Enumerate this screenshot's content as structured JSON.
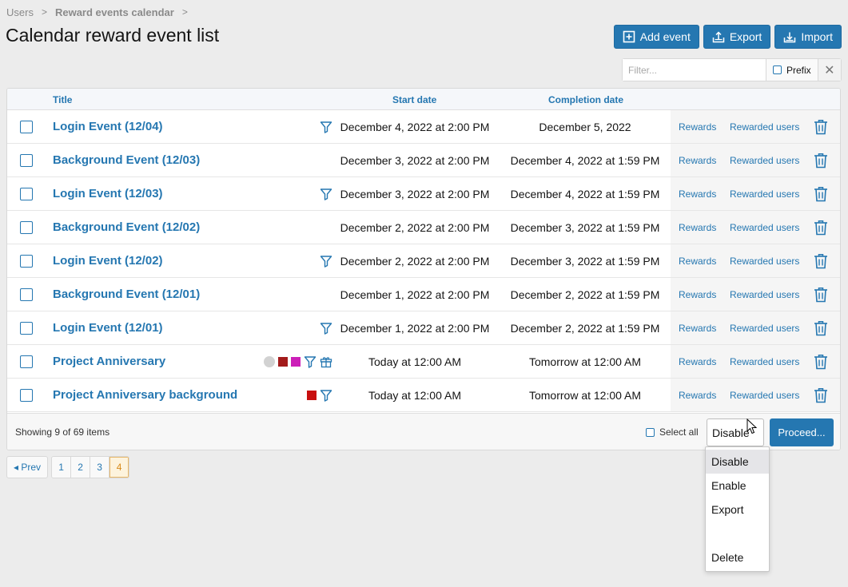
{
  "breadcrumb": {
    "root": "Users",
    "current": "Reward events calendar"
  },
  "page_title": "Calendar reward event list",
  "toolbar": {
    "add_label": "Add event",
    "export_label": "Export",
    "import_label": "Import"
  },
  "filter": {
    "placeholder": "Filter...",
    "prefix_label": "Prefix"
  },
  "columns": {
    "title": "Title",
    "start": "Start date",
    "end": "Completion date"
  },
  "rows": [
    {
      "title": "Login Event (12/04)",
      "start": "December 4, 2022 at 2:00 PM",
      "end": "December 5, 2022",
      "rewards": "Rewards",
      "rewarded": "Rewarded users"
    },
    {
      "title": "Background Event (12/03)",
      "start": "December 3, 2022 at 2:00 PM",
      "end": "December 4, 2022 at 1:59 PM",
      "rewards": "Rewards",
      "rewarded": "Rewarded users"
    },
    {
      "title": "Login Event (12/03)",
      "start": "December 3, 2022 at 2:00 PM",
      "end": "December 4, 2022 at 1:59 PM",
      "rewards": "Rewards",
      "rewarded": "Rewarded users"
    },
    {
      "title": "Background Event (12/02)",
      "start": "December 2, 2022 at 2:00 PM",
      "end": "December 3, 2022 at 1:59 PM",
      "rewards": "Rewards",
      "rewarded": "Rewarded users"
    },
    {
      "title": "Login Event (12/02)",
      "start": "December 2, 2022 at 2:00 PM",
      "end": "December 3, 2022 at 1:59 PM",
      "rewards": "Rewards",
      "rewarded": "Rewarded users"
    },
    {
      "title": "Background Event (12/01)",
      "start": "December 1, 2022 at 2:00 PM",
      "end": "December 2, 2022 at 1:59 PM",
      "rewards": "Rewards",
      "rewarded": "Rewarded users"
    },
    {
      "title": "Login Event (12/01)",
      "start": "December 1, 2022 at 2:00 PM",
      "end": "December 2, 2022 at 1:59 PM",
      "rewards": "Rewards",
      "rewarded": "Rewarded users"
    },
    {
      "title": "Project Anniversary",
      "start": "Today at 12:00 AM",
      "end": "Tomorrow at 12:00 AM",
      "rewards": "Rewards",
      "rewarded": "Rewarded users"
    },
    {
      "title": "Project Anniversary background",
      "start": "Today at 12:00 AM",
      "end": "Tomorrow at 12:00 AM",
      "rewards": "Rewards",
      "rewarded": "Rewarded users"
    }
  ],
  "row_icons": {
    "filter_icon": "filter-icon",
    "gift_icon": "gift-icon",
    "trash_icon": "trash-icon",
    "swatch_colors": {
      "gray": "#d2d2d2",
      "darkred": "#a31b1b",
      "magenta": "#cc1fb8",
      "red": "#c80f0f"
    }
  },
  "footer": {
    "count": "Showing 9 of 69 items",
    "select_all": "Select all",
    "select_value": "Disable",
    "proceed": "Proceed..."
  },
  "pager": {
    "prev": "◂ Prev",
    "pages": [
      "1",
      "2",
      "3",
      "4"
    ],
    "active_page": "4"
  },
  "dropdown": {
    "options": [
      "Disable",
      "Enable",
      "Export",
      "Delete"
    ],
    "selected": "Disable"
  },
  "colors": {
    "accent": "#2577b1",
    "background": "#ececec"
  }
}
